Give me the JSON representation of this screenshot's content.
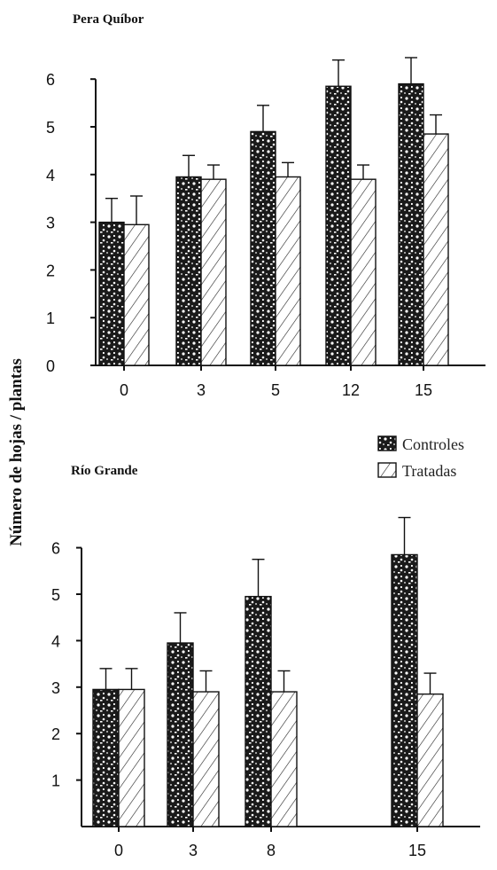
{
  "ylabel": "Número de hojas / plantas",
  "legend": {
    "entries": [
      "Controles",
      "Tratadas"
    ]
  },
  "chart_data": [
    {
      "type": "bar",
      "title": "Pera Quíbor",
      "categories": [
        "0",
        "3",
        "5",
        "12",
        "15"
      ],
      "ylim": [
        0,
        6
      ],
      "yticks": [
        0,
        1,
        2,
        3,
        4,
        5,
        6
      ],
      "series": [
        {
          "name": "Controles",
          "values": [
            3.0,
            3.95,
            4.9,
            5.85,
            5.9
          ],
          "errors": [
            0.5,
            0.45,
            0.55,
            0.55,
            0.55
          ]
        },
        {
          "name": "Tratadas",
          "values": [
            2.95,
            3.9,
            3.95,
            3.9,
            4.85
          ],
          "errors": [
            0.6,
            0.3,
            0.3,
            0.3,
            0.4
          ]
        }
      ]
    },
    {
      "type": "bar",
      "title": "Río Grande",
      "categories": [
        "0",
        "3",
        "8",
        "15"
      ],
      "ylim": [
        0,
        6
      ],
      "yticks": [
        1,
        2,
        3,
        4,
        5,
        6
      ],
      "series": [
        {
          "name": "Controles",
          "values": [
            2.95,
            3.95,
            4.95,
            5.85
          ],
          "errors": [
            0.45,
            0.65,
            0.8,
            0.8
          ]
        },
        {
          "name": "Tratadas",
          "values": [
            2.95,
            2.9,
            2.9,
            2.85
          ],
          "errors": [
            0.45,
            0.45,
            0.45,
            0.45
          ]
        }
      ]
    }
  ]
}
